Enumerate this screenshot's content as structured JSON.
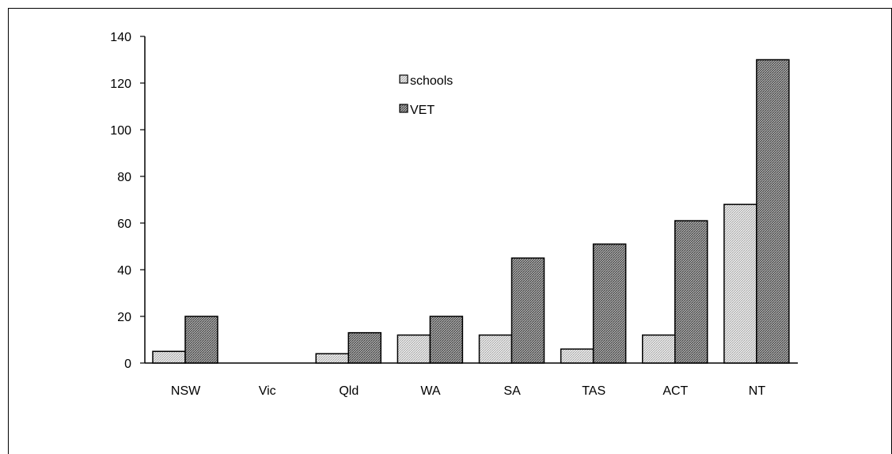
{
  "chart_data": {
    "type": "bar",
    "categories": [
      "NSW",
      "Vic",
      "Qld",
      "WA",
      "SA",
      "TAS",
      "ACT",
      "NT"
    ],
    "series": [
      {
        "name": "schools",
        "values": [
          5,
          0,
          4,
          12,
          12,
          6,
          12,
          68
        ],
        "color": "#d9d9d9"
      },
      {
        "name": "VET",
        "values": [
          20,
          0,
          13,
          20,
          45,
          51,
          61,
          130
        ],
        "color": "#8c8c8c"
      }
    ],
    "title": "",
    "xlabel": "",
    "ylabel": "",
    "ylim": [
      0,
      140
    ],
    "yticks": [
      0,
      20,
      40,
      60,
      80,
      100,
      120,
      140
    ],
    "grid": false,
    "legend_position": "top-center"
  }
}
